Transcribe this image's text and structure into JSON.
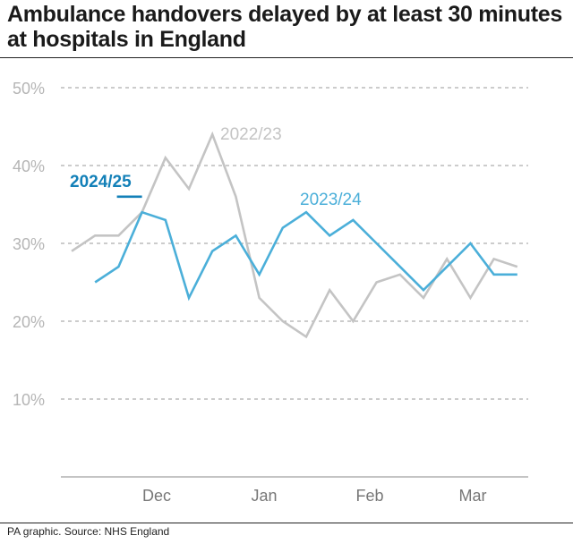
{
  "title": "Ambulance handovers delayed by at least 30 minutes at hospitals in England",
  "source": "PA graphic. Source: NHS England",
  "chart_data": {
    "type": "line",
    "title": "Ambulance handovers delayed by at least 30 minutes at hospitals in England",
    "xlabel": "",
    "ylabel": "",
    "ylim": [
      0,
      50
    ],
    "yticks": [
      "10%",
      "20%",
      "30%",
      "40%",
      "50%"
    ],
    "xticks": [
      "Dec",
      "Jan",
      "Feb",
      "Mar"
    ],
    "grid": true,
    "legend": "inline labels",
    "series": [
      {
        "name": "2022/23",
        "color": "#c4c4c4",
        "values": [
          29,
          31,
          31,
          34,
          41,
          37,
          44,
          36,
          23,
          20,
          18,
          24,
          20,
          25,
          26,
          23,
          28,
          23,
          28,
          27
        ]
      },
      {
        "name": "2023/24",
        "color": "#4bafd9",
        "values": [
          null,
          25,
          27,
          34,
          33,
          23,
          29,
          31,
          26,
          32,
          34,
          31,
          33,
          30,
          27,
          24,
          27,
          30,
          26,
          26
        ]
      },
      {
        "name": "2024/25",
        "color": "#1380b8",
        "values": [
          null,
          null,
          null,
          36
        ]
      }
    ]
  }
}
